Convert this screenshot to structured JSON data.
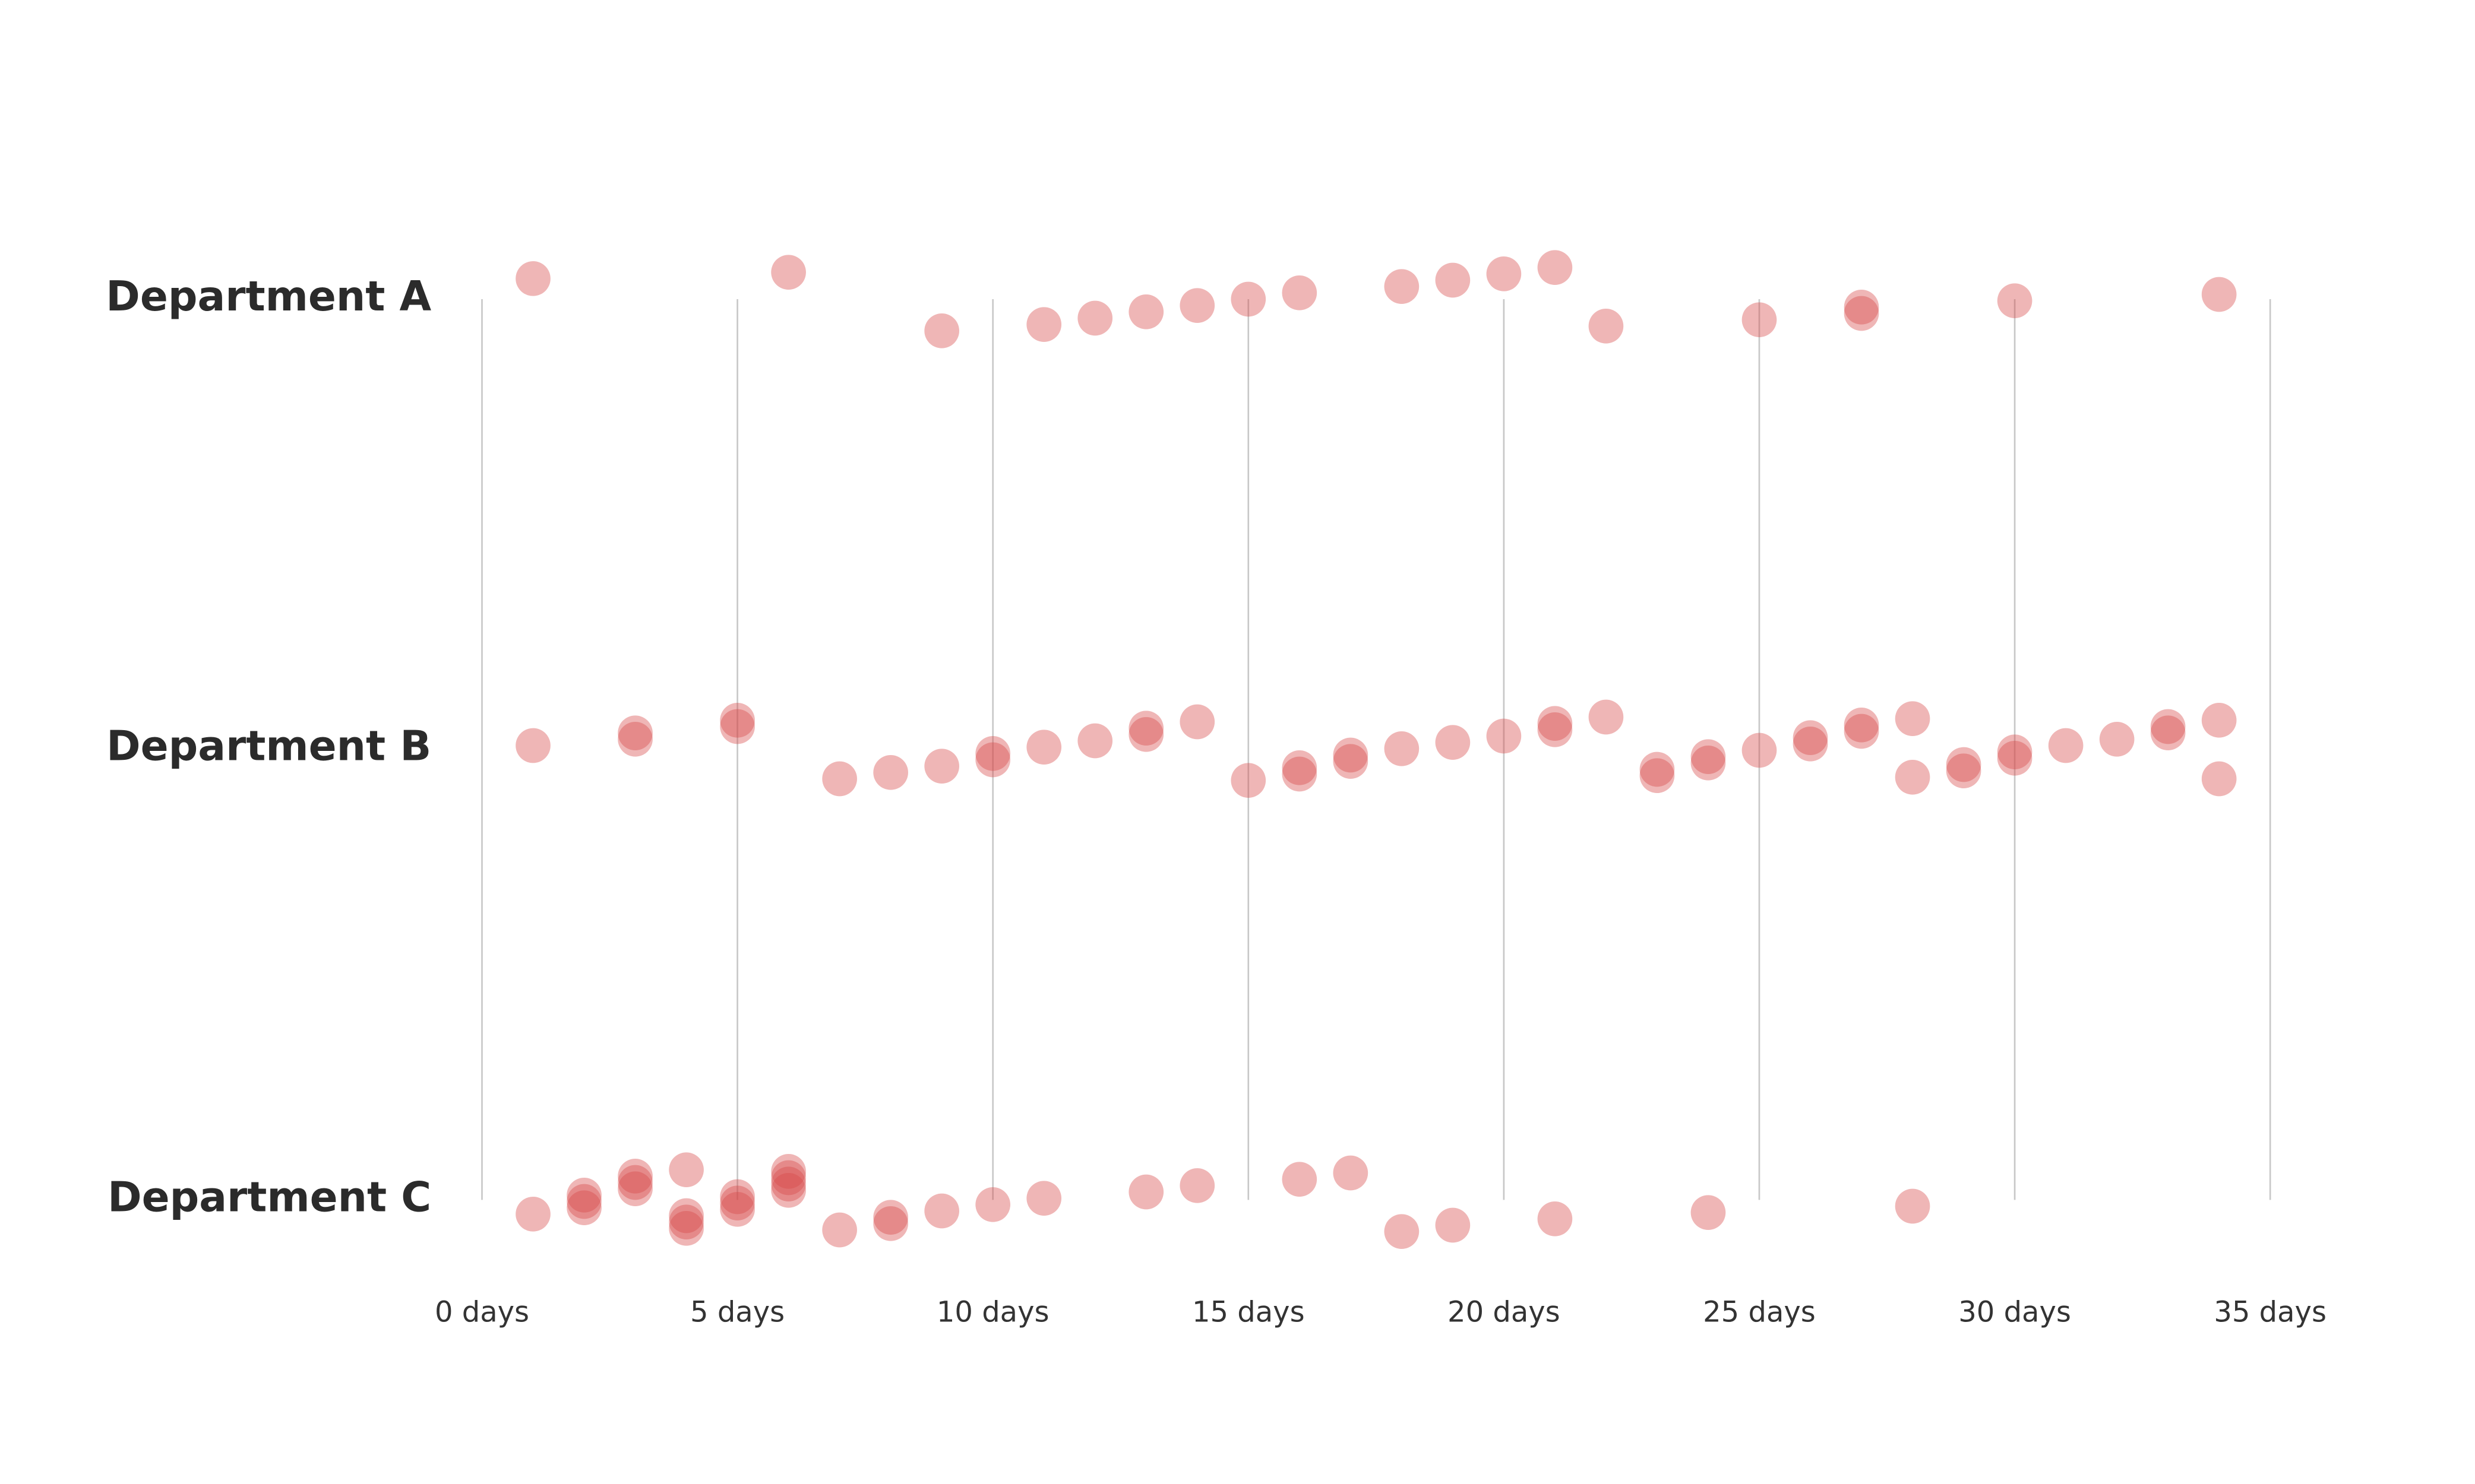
{
  "chart_data": {
    "type": "strip",
    "categories": [
      "Department A",
      "Department B",
      "Department C"
    ],
    "values": [
      [
        1,
        6,
        9,
        11,
        12,
        13,
        14,
        15,
        16,
        18,
        19,
        20,
        21,
        22,
        25,
        27,
        27,
        30,
        34
      ],
      [
        1,
        3,
        3,
        5,
        5,
        7,
        8,
        9,
        10,
        10,
        11,
        12,
        13,
        13,
        14,
        15,
        16,
        16,
        17,
        17,
        18,
        19,
        20,
        21,
        21,
        22,
        23,
        23,
        24,
        24,
        25,
        26,
        26,
        27,
        27,
        28,
        28,
        29,
        29,
        30,
        30,
        31,
        32,
        33,
        33,
        34,
        34
      ],
      [
        1,
        2,
        2,
        2,
        3,
        3,
        3,
        4,
        4,
        4,
        4,
        5,
        5,
        5,
        6,
        6,
        6,
        6,
        7,
        8,
        8,
        9,
        10,
        11,
        13,
        14,
        16,
        17,
        18,
        19,
        21,
        24,
        28
      ]
    ],
    "color": "rgba(214, 72, 72, 0.4)",
    "xlim": [
      0,
      35
    ],
    "xticks": [
      {
        "value": 0,
        "label": "0 days"
      },
      {
        "value": 5,
        "label": "5 days"
      },
      {
        "value": 10,
        "label": "10 days"
      },
      {
        "value": 15,
        "label": "15 days"
      },
      {
        "value": 20,
        "label": "20 days"
      },
      {
        "value": 25,
        "label": "25 days"
      },
      {
        "value": 30,
        "label": "30 days"
      },
      {
        "value": 35,
        "label": "35 days"
      }
    ],
    "grid": true
  }
}
